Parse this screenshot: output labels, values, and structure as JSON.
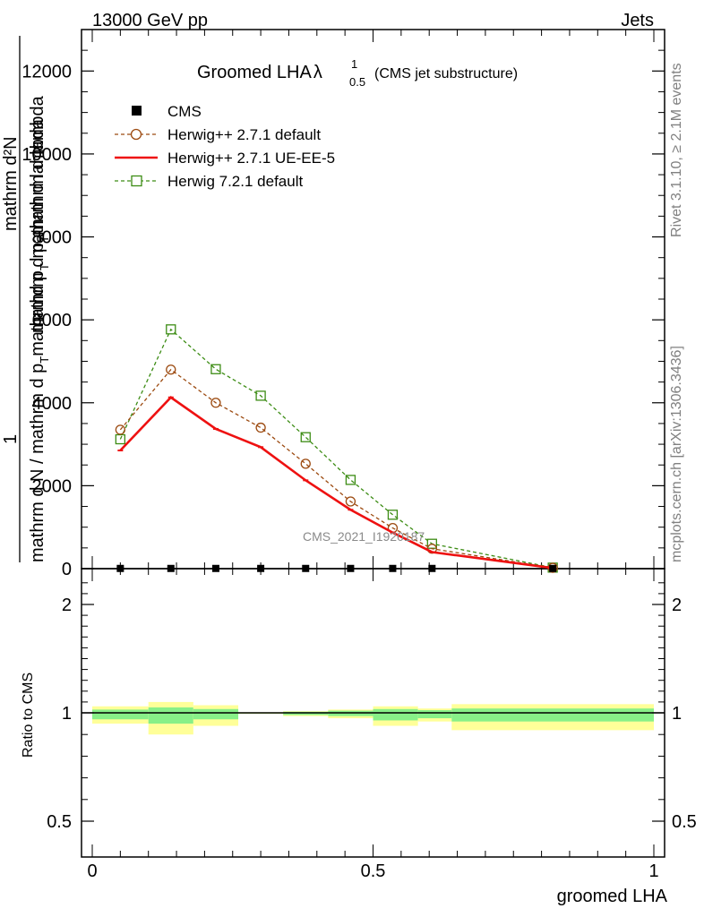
{
  "header": {
    "left": "13000 GeV pp",
    "right": "Jets"
  },
  "side_labels": {
    "rivet": "Rivet 3.1.10, ≥ 2.1M events",
    "mcplots": "mcplots.cern.ch [arXiv:1306.3436]"
  },
  "chart_data": [
    {
      "type": "line",
      "title_main": "Groomed LHA",
      "title_symbol": "λ",
      "title_sup": "1",
      "title_sub": "0.5",
      "subtitle": "(CMS jet substructure)",
      "ylabel": {
        "line1_num": "mathrm d²N",
        "line1_den": "mathrm d p_T mathrm d lambda",
        "pre": "1",
        "den": "mathrm d N / mathrm d p",
        "den_sub": "T",
        "den_post": "mathrmd p",
        "den_sub2": "T",
        "tail": " mathrm d lambda"
      },
      "ylabel_text": {
        "a": "mathrm d²N",
        "b": "mathrm d p",
        "b_sub": "T",
        "c": "mathrm d lambda",
        "one": "1",
        "d": "mathrm d N / mathrm d p",
        "d_sub": "T",
        "e": "mathrmd p",
        "e_sub": "T",
        "f": " mathrm d lambda"
      },
      "watermark": "CMS_2021_I1920187",
      "ylim": [
        0,
        13000
      ],
      "xlim": [
        0,
        1
      ],
      "ytick_labels": [
        "0",
        "2000",
        "4000",
        "6000",
        "8000",
        "10000",
        "12000"
      ],
      "ytick_values": [
        0,
        2000,
        4000,
        6000,
        8000,
        10000,
        12000
      ],
      "legend_position": "top-left",
      "legend": [
        {
          "label": "CMS",
          "color": "#000000",
          "marker": "square-filled"
        },
        {
          "label": "Herwig++ 2.7.1 default",
          "color": "#9c4a10",
          "marker": "circle-open"
        },
        {
          "label": "Herwig++ 2.7.1 UE-EE-5",
          "color": "#ee1111",
          "marker": "none"
        },
        {
          "label": "Herwig 7.2.1 default",
          "color": "#3c8c14",
          "marker": "square-open"
        }
      ],
      "bins": [
        [
          0.0,
          0.1
        ],
        [
          0.1,
          0.18
        ],
        [
          0.18,
          0.26
        ],
        [
          0.26,
          0.34
        ],
        [
          0.34,
          0.42
        ],
        [
          0.42,
          0.5
        ],
        [
          0.5,
          0.58
        ],
        [
          0.58,
          0.64
        ],
        [
          0.64,
          1.0
        ]
      ],
      "series": [
        {
          "name": "CMS",
          "x": [
            0.05,
            0.14,
            0.22,
            0.3,
            0.38,
            0.46,
            0.535,
            0.605,
            0.82
          ],
          "values": [
            5,
            5,
            5,
            5,
            5,
            5,
            5,
            5,
            5
          ]
        },
        {
          "name": "Herwig++ 2.7.1 default",
          "x": [
            0.05,
            0.14,
            0.22,
            0.3,
            0.38,
            0.46,
            0.535,
            0.605,
            0.82
          ],
          "values": [
            3350,
            4800,
            4000,
            3400,
            2530,
            1620,
            980,
            480,
            20
          ]
        },
        {
          "name": "Herwig++ 2.7.1 UE-EE-5",
          "x": [
            0.05,
            0.14,
            0.22,
            0.3,
            0.38,
            0.46,
            0.535,
            0.605,
            0.82
          ],
          "values": [
            2850,
            4130,
            3370,
            2930,
            2130,
            1420,
            870,
            400,
            15
          ]
        },
        {
          "name": "Herwig 7.2.1 default",
          "x": [
            0.05,
            0.14,
            0.22,
            0.3,
            0.38,
            0.46,
            0.535,
            0.605,
            0.82
          ],
          "values": [
            3120,
            5770,
            4810,
            4170,
            3170,
            2140,
            1300,
            600,
            25
          ]
        }
      ]
    },
    {
      "type": "area",
      "ylabel": "Ratio to CMS",
      "xlabel": "groomed LHA",
      "ylim": [
        0.4,
        2.3
      ],
      "xlim": [
        0,
        1
      ],
      "ytick_labels": [
        "0.5",
        "1",
        "2"
      ],
      "ytick_values": [
        0.5,
        1,
        2
      ],
      "xtick_labels": [
        "0",
        "0.5",
        "1"
      ],
      "xtick_values": [
        0,
        0.5,
        1
      ],
      "band_colors": {
        "inner": "#88f088",
        "outer": "#ffff99"
      },
      "bins": [
        [
          0.0,
          0.1
        ],
        [
          0.1,
          0.18
        ],
        [
          0.18,
          0.26
        ],
        [
          0.26,
          0.34
        ],
        [
          0.34,
          0.42
        ],
        [
          0.42,
          0.5
        ],
        [
          0.5,
          0.58
        ],
        [
          0.58,
          0.64
        ],
        [
          0.64,
          1.0
        ]
      ],
      "outer_band": [
        [
          0.95,
          1.06
        ],
        [
          0.9,
          1.1
        ],
        [
          0.94,
          1.07
        ],
        [
          0.995,
          1.005
        ],
        [
          0.985,
          1.015
        ],
        [
          0.975,
          1.03
        ],
        [
          0.94,
          1.06
        ],
        [
          0.96,
          1.04
        ],
        [
          0.92,
          1.08
        ]
      ],
      "inner_band": [
        [
          0.97,
          1.03
        ],
        [
          0.95,
          1.05
        ],
        [
          0.97,
          1.035
        ],
        [
          0.997,
          1.003
        ],
        [
          0.99,
          1.01
        ],
        [
          0.985,
          1.02
        ],
        [
          0.965,
          1.035
        ],
        [
          0.975,
          1.025
        ],
        [
          0.96,
          1.04
        ]
      ],
      "reference": 1
    }
  ]
}
